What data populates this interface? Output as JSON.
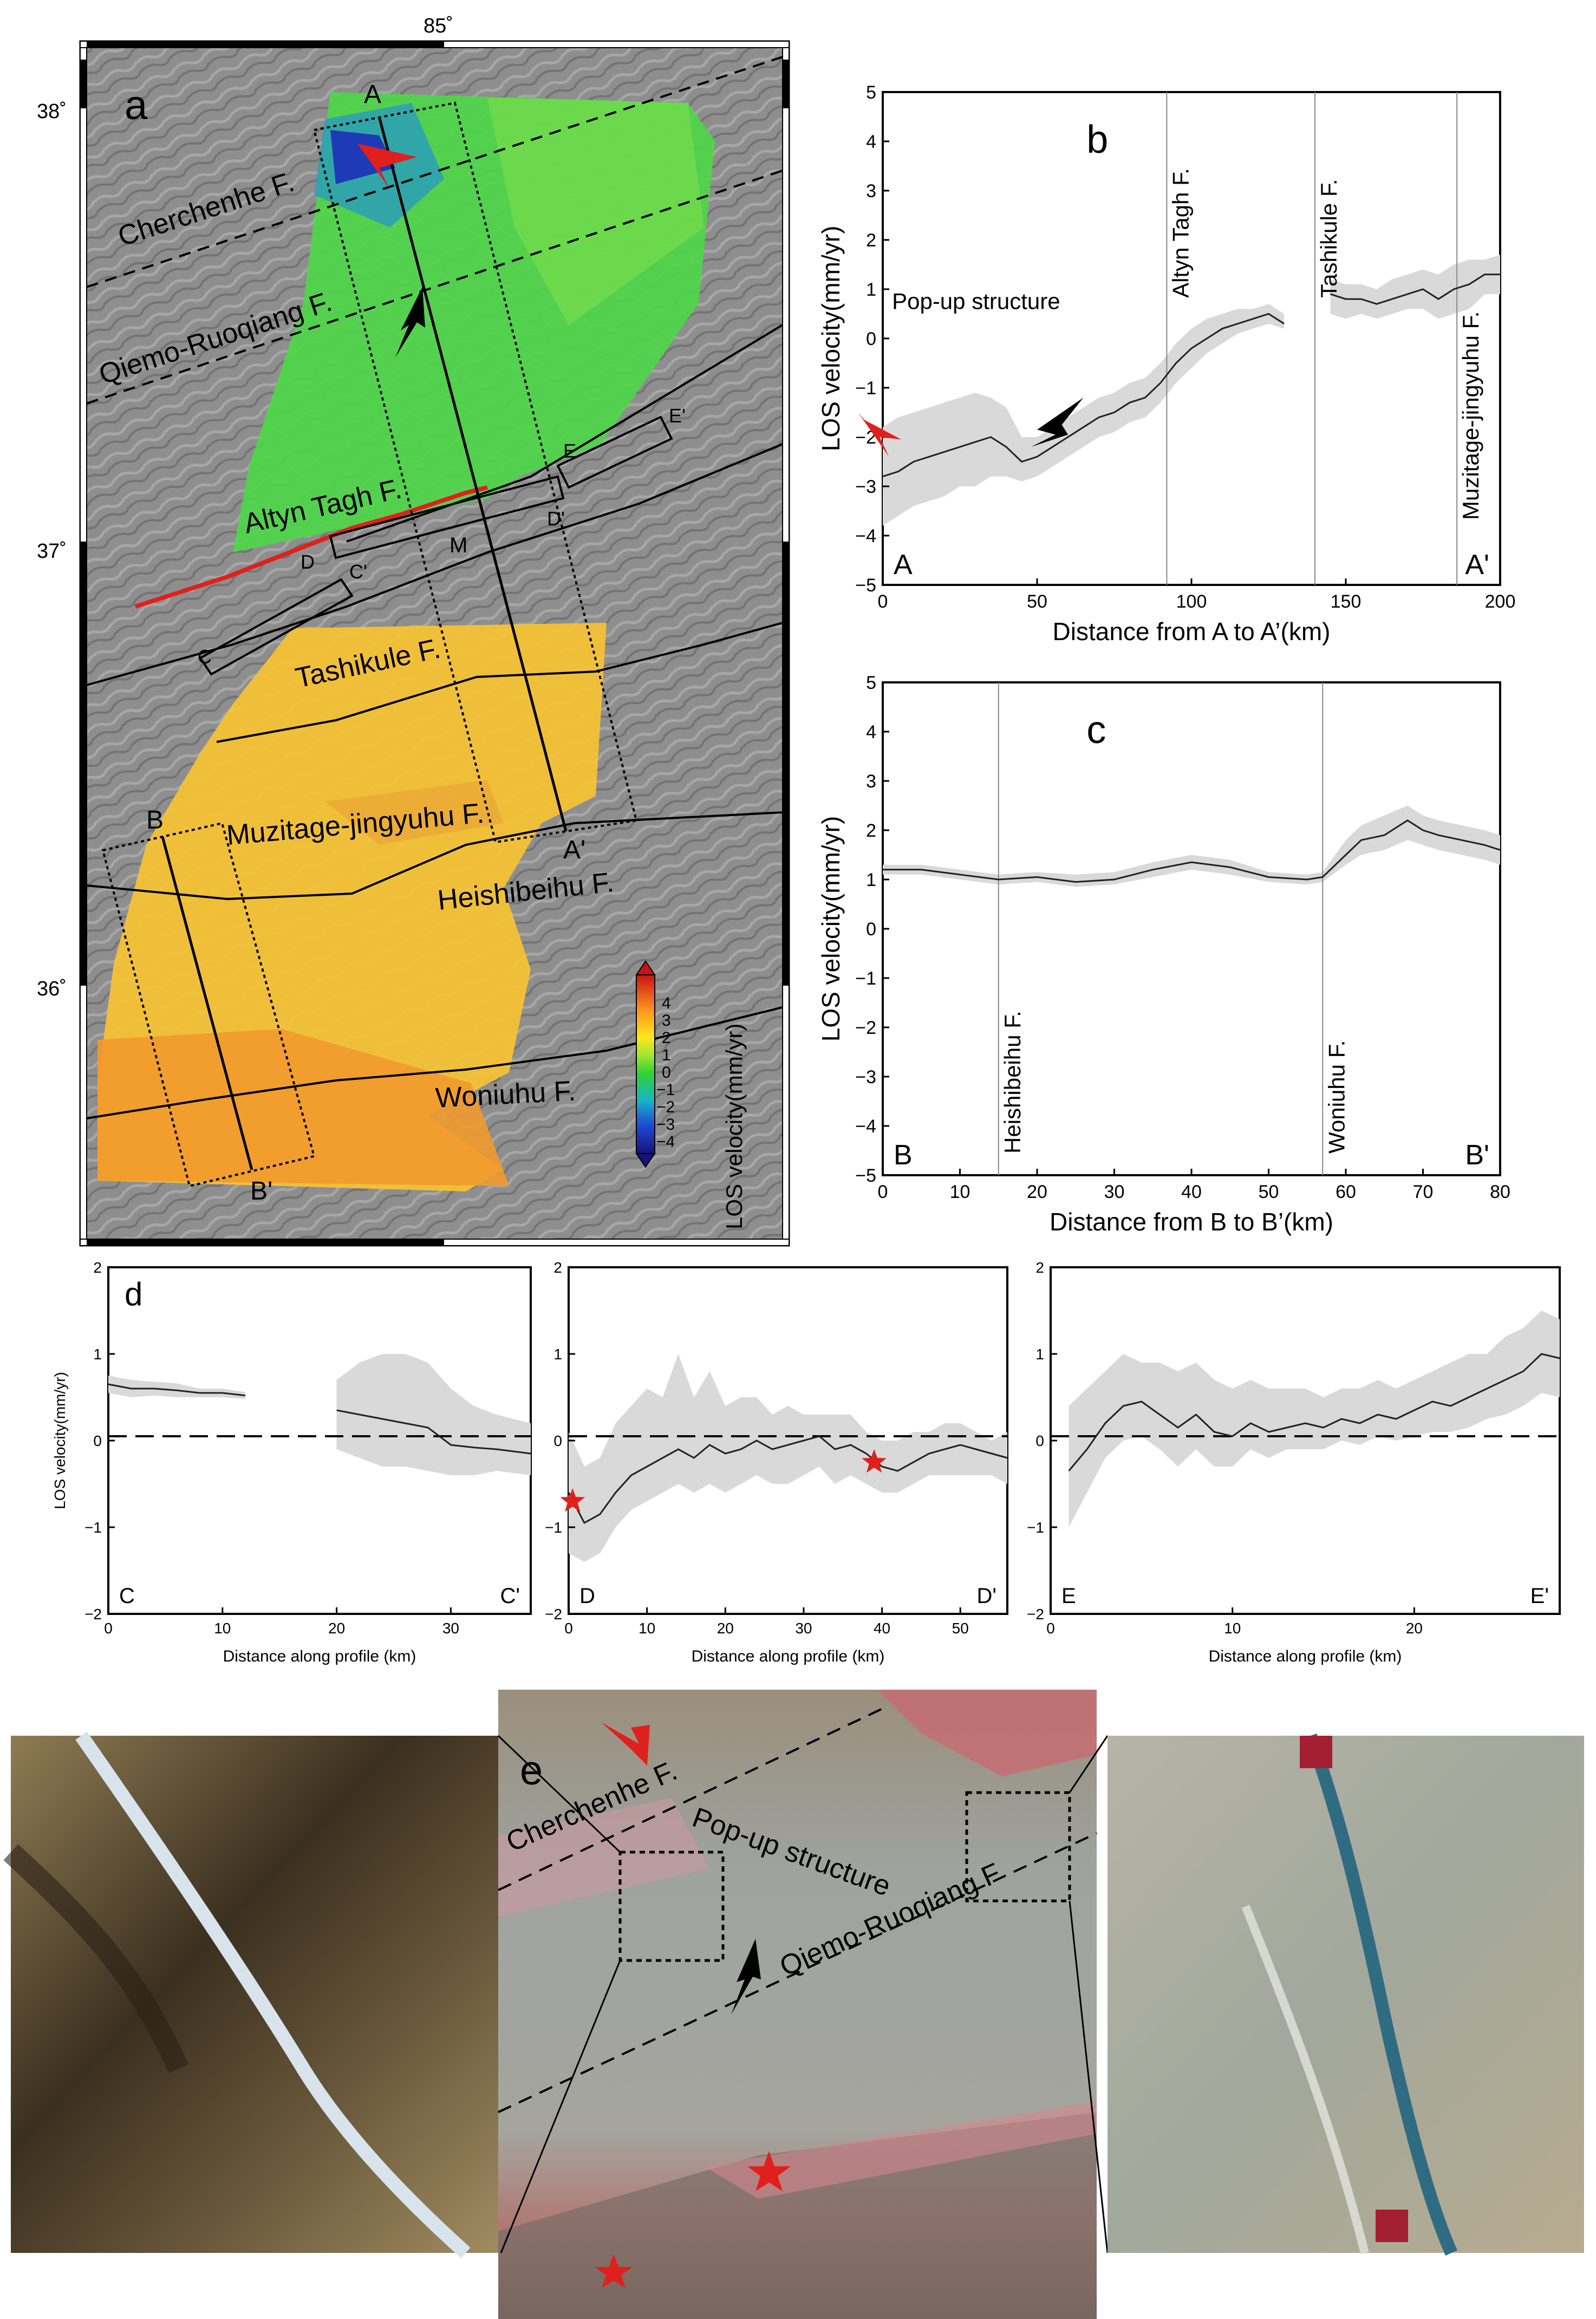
{
  "panel_a": {
    "label": "a",
    "lon_label": "85˚",
    "lat_labels": [
      "38˚",
      "37˚",
      "36˚"
    ],
    "profile_endpoints": [
      "A",
      "A'",
      "B",
      "B'",
      "C",
      "C'",
      "D",
      "D'",
      "E",
      "E'",
      "M"
    ],
    "faults": [
      "Cherchenhe F.",
      "Qiemo-Ruoqiang F.",
      "Altyn Tagh F.",
      "Tashikule F.",
      "Muzitage-jingyuhu F.",
      "Heishibeihu F.",
      "Woniuhu F."
    ],
    "colorbar": {
      "title": "LOS velocity(mm/yr)",
      "ticks": [
        "4",
        "3",
        "2",
        "1",
        "0",
        "−1",
        "−2",
        "−3",
        "−4"
      ]
    },
    "colors": {
      "sea_gray": "#8f8f8f",
      "fault_red": "#e0201c"
    }
  },
  "chart_data": [
    {
      "id": "b",
      "type": "line",
      "label": "b",
      "xlabel": "Distance from A to A’(km)",
      "ylabel": "LOS velocity(mm/yr)",
      "xlim": [
        0,
        200
      ],
      "ylim": [
        -5,
        5
      ],
      "xticks": [
        0,
        50,
        100,
        150,
        200
      ],
      "yticks": [
        -5,
        -4,
        -3,
        -2,
        -1,
        0,
        1,
        2,
        3,
        4,
        5
      ],
      "x": [
        0,
        5,
        10,
        15,
        20,
        25,
        30,
        35,
        40,
        45,
        50,
        55,
        60,
        65,
        70,
        75,
        80,
        85,
        90,
        95,
        100,
        105,
        110,
        115,
        120,
        125,
        130,
        140,
        145,
        150,
        155,
        160,
        165,
        170,
        175,
        180,
        185,
        190,
        195,
        200
      ],
      "values": [
        -2.8,
        -2.7,
        -2.5,
        -2.4,
        -2.3,
        -2.2,
        -2.1,
        -2.0,
        -2.2,
        -2.5,
        -2.4,
        -2.2,
        -2.0,
        -1.8,
        -1.6,
        -1.5,
        -1.3,
        -1.2,
        -0.9,
        -0.5,
        -0.2,
        0.0,
        0.2,
        0.3,
        0.4,
        0.5,
        0.3,
        null,
        0.9,
        0.8,
        0.8,
        0.7,
        0.8,
        0.9,
        1.0,
        0.8,
        1.0,
        1.1,
        1.3,
        1.3
      ],
      "band_lower": [
        -3.8,
        -3.6,
        -3.4,
        -3.3,
        -3.2,
        -3.0,
        -3.0,
        -2.8,
        -2.8,
        -2.9,
        -2.8,
        -2.6,
        -2.4,
        -2.2,
        -2.0,
        -1.9,
        -1.7,
        -1.6,
        -1.3,
        -0.9,
        -0.6,
        -0.3,
        -0.1,
        0.1,
        0.2,
        0.3,
        0.2,
        null,
        0.5,
        0.4,
        0.5,
        0.4,
        0.5,
        0.6,
        0.6,
        0.4,
        0.5,
        0.6,
        0.9,
        0.9
      ],
      "band_upper": [
        -1.8,
        -1.6,
        -1.5,
        -1.4,
        -1.3,
        -1.2,
        -1.1,
        -1.2,
        -1.4,
        -2.0,
        -2.0,
        -1.8,
        -1.6,
        -1.4,
        -1.2,
        -1.1,
        -0.9,
        -0.8,
        -0.5,
        -0.1,
        0.2,
        0.4,
        0.5,
        0.6,
        0.6,
        0.7,
        0.5,
        null,
        1.2,
        1.1,
        1.1,
        1.0,
        1.2,
        1.3,
        1.4,
        1.3,
        1.5,
        1.6,
        1.6,
        1.7
      ],
      "vlines": [
        {
          "x": 92,
          "label": "Altyn Tagh F."
        },
        {
          "x": 140,
          "label": "Tashikule F."
        },
        {
          "x": 186,
          "label": "Muzitage-jingyuhu F."
        }
      ],
      "annotations": {
        "popup": "Pop-up structure",
        "start": "A",
        "end": "A'"
      }
    },
    {
      "id": "c",
      "type": "line",
      "label": "c",
      "xlabel": "Distance from B to B’(km)",
      "ylabel": "LOS velocity(mm/yr)",
      "xlim": [
        0,
        80
      ],
      "ylim": [
        -5,
        5
      ],
      "xticks": [
        0,
        10,
        20,
        30,
        40,
        50,
        60,
        70,
        80
      ],
      "yticks": [
        -5,
        -4,
        -3,
        -2,
        -1,
        0,
        1,
        2,
        3,
        4,
        5
      ],
      "x": [
        0,
        5,
        10,
        15,
        20,
        25,
        30,
        35,
        40,
        45,
        50,
        55,
        57,
        60,
        62,
        65,
        68,
        70,
        72,
        75,
        78,
        80
      ],
      "values": [
        1.2,
        1.2,
        1.1,
        1.0,
        1.05,
        0.95,
        1.0,
        1.2,
        1.35,
        1.25,
        1.05,
        1.0,
        1.05,
        1.5,
        1.8,
        1.9,
        2.2,
        2.0,
        1.9,
        1.8,
        1.7,
        1.6
      ],
      "band_lower": [
        1.1,
        1.1,
        1.0,
        0.9,
        0.95,
        0.85,
        0.9,
        1.05,
        1.2,
        1.1,
        0.95,
        0.9,
        0.95,
        1.3,
        1.5,
        1.6,
        1.8,
        1.7,
        1.6,
        1.5,
        1.4,
        1.3
      ],
      "band_upper": [
        1.3,
        1.3,
        1.2,
        1.1,
        1.15,
        1.1,
        1.15,
        1.35,
        1.5,
        1.4,
        1.15,
        1.1,
        1.15,
        1.8,
        2.1,
        2.3,
        2.5,
        2.3,
        2.2,
        2.1,
        2.0,
        1.9
      ],
      "vlines": [
        {
          "x": 15,
          "label": "Heishibeihu F."
        },
        {
          "x": 57,
          "label": "Woniuhu F."
        }
      ],
      "annotations": {
        "start": "B",
        "end": "B'"
      }
    },
    {
      "id": "d1",
      "type": "line",
      "label": "d",
      "xlabel": "Distance along profile (km)",
      "ylabel": "LOS velocity(mm/yr)",
      "xlim": [
        0,
        37
      ],
      "ylim": [
        -2,
        2
      ],
      "xticks": [
        0,
        10,
        20,
        30
      ],
      "yticks": [
        -2,
        -1,
        0,
        1,
        2
      ],
      "x": [
        0,
        2,
        4,
        6,
        8,
        10,
        12,
        14,
        16,
        18,
        20,
        22,
        24,
        26,
        28,
        30,
        32,
        34,
        37
      ],
      "values": [
        0.65,
        0.6,
        0.6,
        0.58,
        0.55,
        0.55,
        0.52,
        null,
        null,
        null,
        0.35,
        0.3,
        0.25,
        0.2,
        0.15,
        -0.05,
        -0.08,
        -0.1,
        -0.15
      ],
      "band_lower": [
        0.55,
        0.5,
        0.52,
        0.5,
        0.5,
        0.5,
        0.48,
        null,
        null,
        null,
        -0.1,
        -0.2,
        -0.3,
        -0.3,
        -0.35,
        -0.4,
        -0.4,
        -0.35,
        -0.4
      ],
      "band_upper": [
        0.75,
        0.7,
        0.68,
        0.66,
        0.6,
        0.6,
        0.56,
        null,
        null,
        null,
        0.7,
        0.9,
        1.0,
        1.0,
        0.9,
        0.6,
        0.4,
        0.3,
        0.2
      ],
      "hline": 0.05,
      "annotations": {
        "start": "C",
        "end": "C'"
      }
    },
    {
      "id": "d2",
      "type": "line",
      "xlabel": "Distance along profile (km)",
      "xlim": [
        0,
        56
      ],
      "ylim": [
        -2,
        2
      ],
      "xticks": [
        0,
        10,
        20,
        30,
        40,
        50
      ],
      "yticks": [
        -2,
        -1,
        0,
        1,
        2
      ],
      "x": [
        0,
        2,
        4,
        6,
        8,
        10,
        12,
        14,
        16,
        18,
        20,
        22,
        24,
        26,
        28,
        30,
        32,
        34,
        36,
        38,
        40,
        42,
        44,
        46,
        48,
        50,
        52,
        54,
        56
      ],
      "values": [
        -0.6,
        -0.95,
        -0.85,
        -0.6,
        -0.4,
        -0.3,
        -0.2,
        -0.1,
        -0.2,
        -0.05,
        -0.15,
        -0.1,
        0.0,
        -0.1,
        -0.05,
        0.0,
        0.05,
        -0.1,
        -0.05,
        -0.15,
        -0.3,
        -0.35,
        -0.25,
        -0.15,
        -0.1,
        -0.05,
        -0.1,
        -0.15,
        -0.2
      ],
      "band_lower": [
        -1.3,
        -1.4,
        -1.3,
        -1.0,
        -0.8,
        -0.7,
        -0.6,
        -0.5,
        -0.6,
        -0.5,
        -0.6,
        -0.5,
        -0.4,
        -0.5,
        -0.5,
        -0.4,
        -0.3,
        -0.5,
        -0.4,
        -0.5,
        -0.6,
        -0.6,
        -0.5,
        -0.4,
        -0.4,
        -0.4,
        -0.4,
        -0.4,
        -0.5
      ],
      "band_upper": [
        0.1,
        -0.3,
        -0.2,
        0.2,
        0.4,
        0.6,
        0.5,
        1.0,
        0.5,
        0.8,
        0.4,
        0.5,
        0.5,
        0.3,
        0.4,
        0.3,
        0.3,
        0.3,
        0.3,
        0.1,
        0.0,
        0.0,
        0.1,
        0.1,
        0.2,
        0.2,
        0.1,
        0.0,
        0.1
      ],
      "hline": 0.05,
      "stars": [
        {
          "x": 0.5,
          "y": -0.7
        },
        {
          "x": 39,
          "y": -0.25
        }
      ],
      "annotations": {
        "start": "D",
        "end": "D'"
      }
    },
    {
      "id": "d3",
      "type": "line",
      "xlabel": "Distance along profile (km)",
      "xlim": [
        0,
        28
      ],
      "ylim": [
        -2,
        2
      ],
      "xticks": [
        0,
        10,
        20
      ],
      "yticks": [
        -2,
        -1,
        0,
        1,
        2
      ],
      "x": [
        1,
        2,
        3,
        4,
        5,
        6,
        7,
        8,
        9,
        10,
        11,
        12,
        13,
        14,
        15,
        16,
        17,
        18,
        19,
        20,
        21,
        22,
        23,
        24,
        25,
        26,
        27,
        28
      ],
      "values": [
        -0.35,
        -0.1,
        0.2,
        0.4,
        0.45,
        0.3,
        0.15,
        0.3,
        0.1,
        0.05,
        0.2,
        0.1,
        0.15,
        0.2,
        0.15,
        0.25,
        0.2,
        0.3,
        0.25,
        0.35,
        0.45,
        0.4,
        0.5,
        0.6,
        0.7,
        0.8,
        1.0,
        0.95
      ],
      "band_lower": [
        -1.0,
        -0.6,
        -0.2,
        0.0,
        0.05,
        -0.1,
        -0.3,
        -0.1,
        -0.3,
        -0.3,
        -0.1,
        -0.2,
        -0.1,
        -0.1,
        -0.1,
        0.0,
        -0.05,
        0.05,
        0.0,
        0.05,
        0.1,
        0.1,
        0.15,
        0.25,
        0.3,
        0.4,
        0.55,
        0.5
      ],
      "band_upper": [
        0.4,
        0.6,
        0.8,
        1.0,
        0.9,
        0.9,
        0.8,
        0.9,
        0.7,
        0.6,
        0.7,
        0.6,
        0.6,
        0.6,
        0.5,
        0.6,
        0.6,
        0.7,
        0.6,
        0.7,
        0.8,
        0.9,
        1.0,
        1.0,
        1.2,
        1.3,
        1.5,
        1.4
      ],
      "hline": 0.05,
      "annotations": {
        "start": "E",
        "end": "E'"
      }
    }
  ],
  "panel_e": {
    "label": "e",
    "labels": [
      "Cherchenhe F.",
      "Pop-up structure",
      "Qiemo-Ruoqiang F"
    ]
  }
}
